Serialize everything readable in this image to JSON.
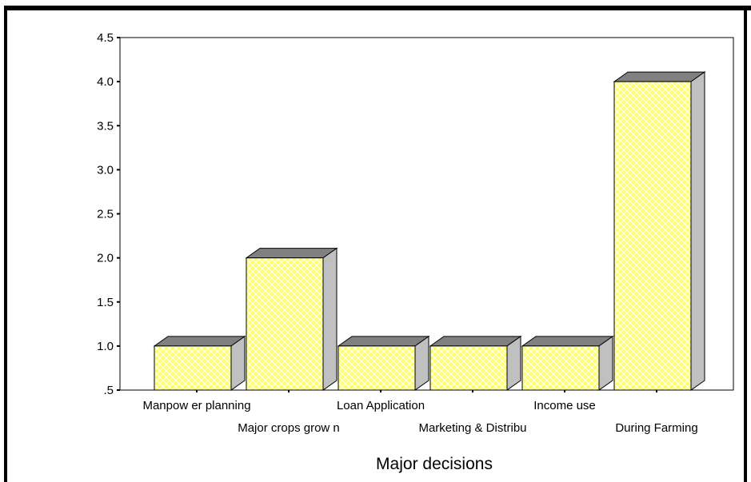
{
  "colors": {
    "bar_face": "#ffff66",
    "bar_hatch": "#ffffff",
    "bar_side": "#c0c0c0",
    "bar_top": "#808080",
    "outline": "#000000"
  },
  "chart_data": {
    "type": "bar",
    "style": "3d-hatched",
    "title": "",
    "xlabel": "Major decisions",
    "ylabel": "",
    "categories": [
      "Manpow er planning",
      "Major crops grow n",
      "Loan Application",
      "Marketing & Distribu",
      "Income use",
      "During Farming"
    ],
    "values": [
      1.0,
      2.0,
      1.0,
      1.0,
      1.0,
      4.0
    ],
    "ylim": [
      0.5,
      4.5
    ],
    "yticks": [
      ".5",
      "1.0",
      "1.5",
      "2.0",
      "2.5",
      "3.0",
      "3.5",
      "4.0",
      "4.5"
    ],
    "grid": false,
    "legend": "none"
  }
}
